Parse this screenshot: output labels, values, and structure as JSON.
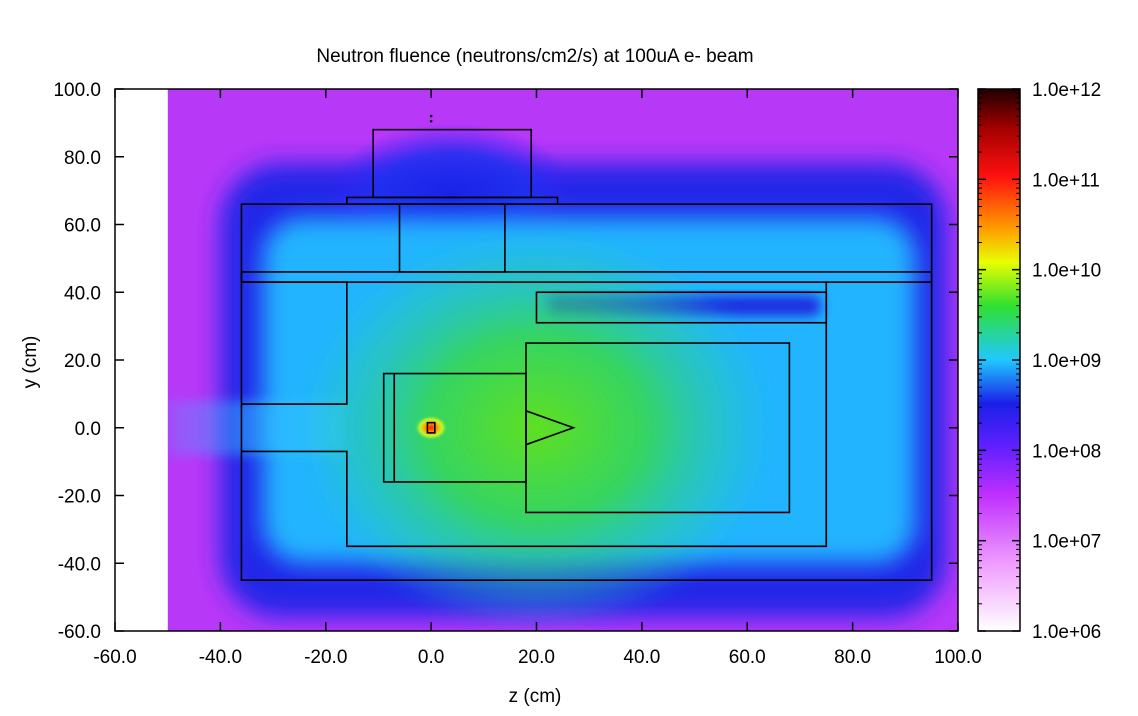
{
  "chart_data": {
    "type": "heatmap",
    "title": "Neutron fluence (neutrons/cm2/s) at 100uA e- beam",
    "xlabel": "z (cm)",
    "ylabel": "y (cm)",
    "xlim": [
      -60,
      100
    ],
    "ylim": [
      -60,
      100
    ],
    "x_ticks": [
      "-60.0",
      "-40.0",
      "-20.0",
      "0.0",
      "20.0",
      "40.0",
      "60.0",
      "80.0",
      "100.0"
    ],
    "y_ticks": [
      "-60.0",
      "-40.0",
      "-20.0",
      "0.0",
      "20.0",
      "40.0",
      "60.0",
      "80.0",
      "100.0"
    ],
    "colorbar": {
      "scale": "log",
      "range": [
        1000000.0,
        1000000000000.0
      ],
      "tick_labels": [
        "1.0e+06",
        "1.0e+07",
        "1.0e+08",
        "1.0e+09",
        "1.0e+10",
        "1.0e+11",
        "1.0e+12"
      ],
      "colors": [
        "#ffffff",
        "#e040ff",
        "#1a20e8",
        "#20c8ff",
        "#30e030",
        "#ffff00",
        "#ff1010",
        "#200000"
      ]
    },
    "data_extent_z": [
      -50,
      100
    ],
    "source_point": [
      0,
      0
    ],
    "geometry": [
      {
        "shape": "rect",
        "z0": -36,
        "z1": 95,
        "y0": -45,
        "y1": 66
      },
      {
        "shape": "rect",
        "z0": -36,
        "z1": 95,
        "y0": 43,
        "y1": 46
      },
      {
        "shape": "rect",
        "z0": -6,
        "z1": 14,
        "y0": 46,
        "y1": 66
      },
      {
        "shape": "rect",
        "z0": -16,
        "z1": 24,
        "y0": 66,
        "y1": 68
      },
      {
        "shape": "rect",
        "z0": -11,
        "z1": 19,
        "y0": 68,
        "y1": 88
      },
      {
        "shape": "polyline",
        "points": [
          [
            -36,
            43
          ],
          [
            -16,
            43
          ],
          [
            -16,
            7
          ],
          [
            -36,
            7
          ]
        ]
      },
      {
        "shape": "polyline",
        "points": [
          [
            -36,
            -7
          ],
          [
            -16,
            -7
          ],
          [
            -16,
            -35
          ],
          [
            75,
            -35
          ],
          [
            75,
            43
          ]
        ]
      },
      {
        "shape": "rect",
        "z0": 20,
        "z1": 75,
        "y0": 31,
        "y1": 40
      },
      {
        "shape": "rect",
        "z0": 18,
        "z1": 68,
        "y0": -25,
        "y1": 25
      },
      {
        "shape": "rect",
        "z0": -9,
        "z1": 18,
        "y0": -16,
        "y1": 16
      },
      {
        "shape": "line",
        "points": [
          [
            -7,
            -16
          ],
          [
            -7,
            16
          ]
        ]
      },
      {
        "shape": "polygon",
        "points": [
          [
            18,
            5
          ],
          [
            27,
            0
          ],
          [
            18,
            -5
          ]
        ]
      },
      {
        "shape": "rect",
        "z0": -0.7,
        "z1": 0.7,
        "y0": -1.5,
        "y1": 1.5
      }
    ],
    "markers": [
      [
        0,
        92
      ],
      [
        0,
        90.5
      ]
    ]
  }
}
